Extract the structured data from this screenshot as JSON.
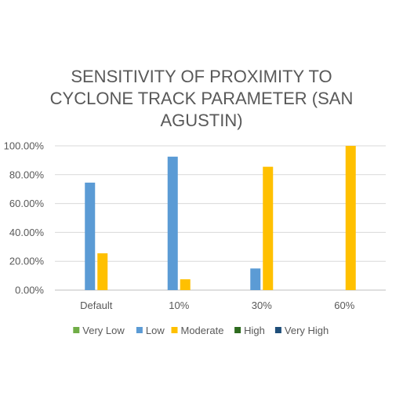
{
  "chart_data": {
    "type": "bar",
    "title_lines": [
      "SENSITIVITY OF PROXIMITY TO",
      "CYCLONE TRACK PARAMETER (SAN",
      "AGUSTIN)"
    ],
    "categories": [
      "Default",
      "10%",
      "30%",
      "60%"
    ],
    "ylim": [
      0,
      1
    ],
    "yticks": [
      0,
      0.2,
      0.4,
      0.6,
      0.8,
      1.0
    ],
    "ytick_labels": [
      "0.00%",
      "20.00%",
      "40.00%",
      "60.00%",
      "80.00%",
      "100.00%"
    ],
    "grid": true,
    "legend_position": "bottom",
    "series": [
      {
        "name": "Very Low",
        "color": "#70ad47",
        "values": [
          0,
          0,
          0,
          0
        ]
      },
      {
        "name": "Low",
        "color": "#5b9bd5",
        "values": [
          0.745,
          0.925,
          0.15,
          0
        ]
      },
      {
        "name": "Moderate",
        "color": "#ffc000",
        "values": [
          0.255,
          0.075,
          0.855,
          1.0
        ]
      },
      {
        "name": "High",
        "color": "#2e6b1f",
        "values": [
          0,
          0,
          0,
          0
        ]
      },
      {
        "name": "Very High",
        "color": "#1f4e79",
        "values": [
          0,
          0,
          0,
          0
        ]
      }
    ]
  }
}
